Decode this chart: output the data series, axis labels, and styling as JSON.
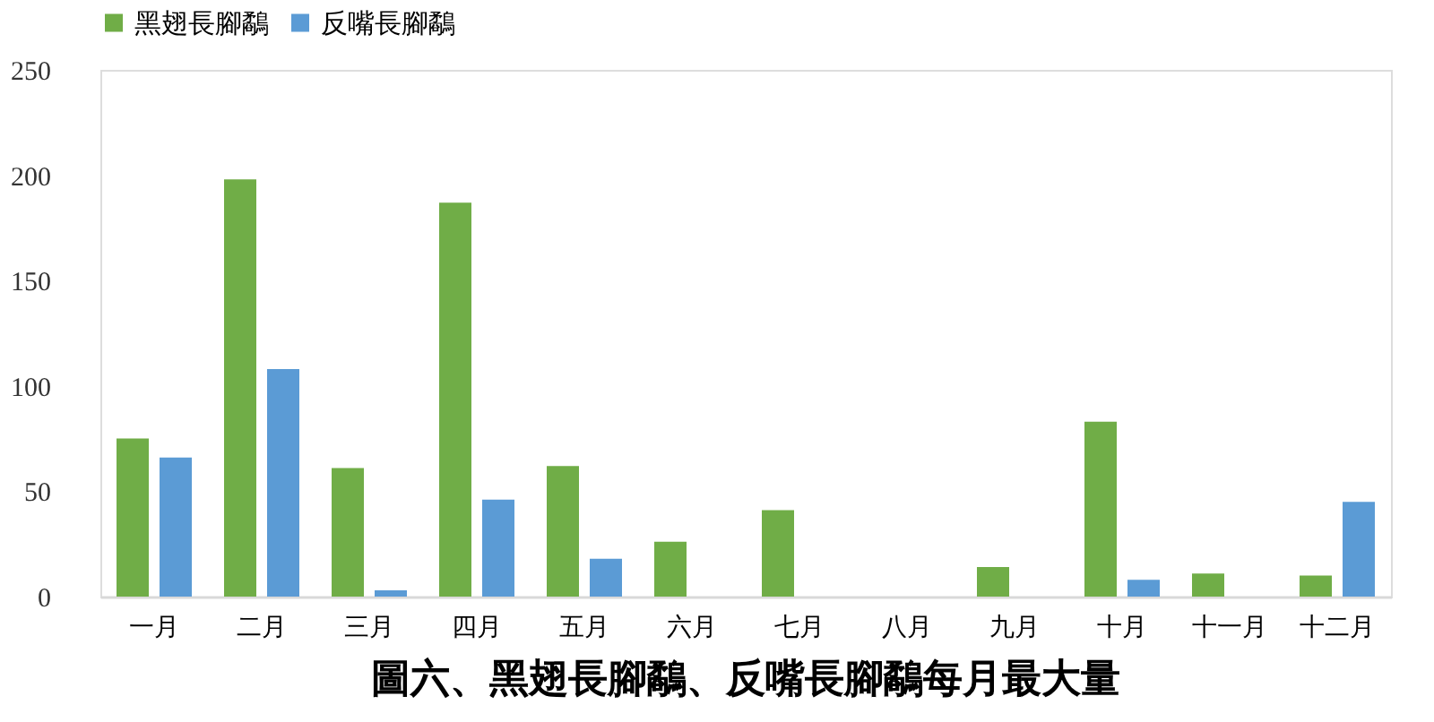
{
  "chart_data": {
    "type": "bar",
    "title": "圖六、黑翅長腳鷸、反嘴長腳鷸每月最大量",
    "categories": [
      "一月",
      "二月",
      "三月",
      "四月",
      "五月",
      "六月",
      "七月",
      "八月",
      "九月",
      "十月",
      "十一月",
      "十二月"
    ],
    "series": [
      {
        "name": "黑翅長腳鷸",
        "color": "#70ad47",
        "values": [
          75,
          198,
          61,
          187,
          62,
          26,
          41,
          null,
          14,
          83,
          11,
          10
        ]
      },
      {
        "name": "反嘴長腳鷸",
        "color": "#5b9bd5",
        "values": [
          66,
          108,
          3,
          46,
          18,
          null,
          null,
          null,
          null,
          8,
          null,
          45
        ]
      }
    ],
    "ylim": [
      0,
      250
    ],
    "yticks": [
      0,
      50,
      100,
      150,
      200,
      250
    ],
    "grid": false,
    "legend": "top"
  }
}
